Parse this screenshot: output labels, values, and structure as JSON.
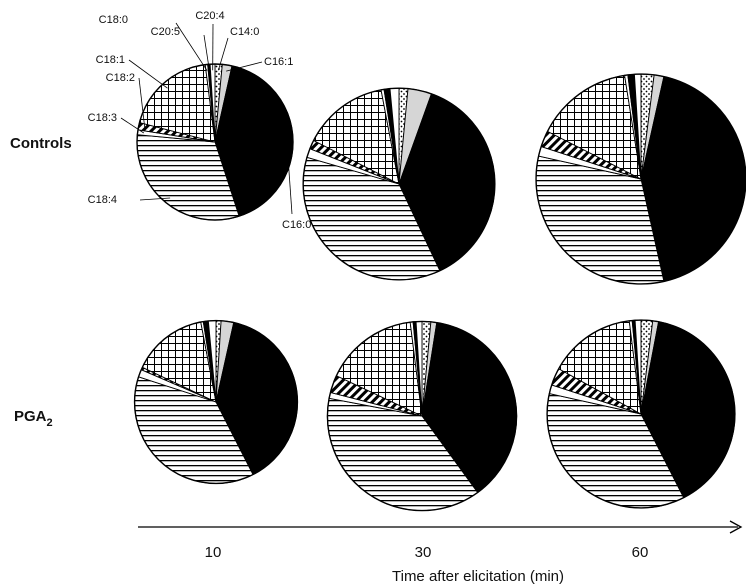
{
  "chart_data": {
    "type": "pie",
    "slice_order_clockwise_from_top": [
      "C14:0",
      "C16:1",
      "C16:0",
      "C18:4",
      "C18:3",
      "C18:2",
      "C18:1",
      "C18:0",
      "C20:5",
      "C20:4"
    ],
    "fatty_acids": [
      {
        "name": "C14:0",
        "pattern": "dots"
      },
      {
        "name": "C16:1",
        "pattern": "light-gray"
      },
      {
        "name": "C16:0",
        "pattern": "solid-black"
      },
      {
        "name": "C18:4",
        "pattern": "horizontal-lines"
      },
      {
        "name": "C18:3",
        "pattern": "white"
      },
      {
        "name": "C18:2",
        "pattern": "diagonal-stripes"
      },
      {
        "name": "C18:1",
        "pattern": "grid"
      },
      {
        "name": "C18:0",
        "pattern": "white"
      },
      {
        "name": "C20:5",
        "pattern": "black"
      },
      {
        "name": "C20:4",
        "pattern": "white"
      }
    ],
    "rows": [
      {
        "label": "Controls",
        "label_sub": ""
      },
      {
        "label": "PGA",
        "label_sub": "2"
      }
    ],
    "x_axis": {
      "title": "Time after elicitation (min)",
      "ticks": [
        "10",
        "30",
        "60"
      ]
    },
    "pies": [
      {
        "row": 0,
        "time": "10",
        "relative_total": 1.0,
        "values": [
          1.5,
          2.0,
          41.5,
          31.5,
          1.0,
          1.5,
          19.0,
          0.5,
          0.5,
          1.0
        ]
      },
      {
        "row": 0,
        "time": "30",
        "relative_total": 1.51,
        "values": [
          1.5,
          4.0,
          37.5,
          36.5,
          1.5,
          1.5,
          14.5,
          0.5,
          1.0,
          1.5
        ]
      },
      {
        "row": 0,
        "time": "60",
        "relative_total": 1.81,
        "values": [
          2.0,
          1.5,
          43.0,
          32.0,
          1.5,
          2.5,
          15.0,
          0.5,
          1.0,
          1.0
        ]
      },
      {
        "row": 1,
        "time": "10",
        "relative_total": 1.09,
        "values": [
          1.0,
          2.5,
          39.0,
          37.5,
          1.5,
          0.5,
          15.0,
          0.5,
          1.0,
          1.5
        ]
      },
      {
        "row": 1,
        "time": "30",
        "relative_total": 1.47,
        "values": [
          1.5,
          1.0,
          37.5,
          38.0,
          1.0,
          3.0,
          16.0,
          0.5,
          0.5,
          1.0
        ]
      },
      {
        "row": 1,
        "time": "60",
        "relative_total": 1.45,
        "values": [
          2.0,
          1.0,
          39.5,
          36.0,
          1.5,
          3.0,
          15.0,
          0.5,
          0.5,
          1.0
        ]
      }
    ],
    "callout_labels_on": "Controls / 10"
  }
}
